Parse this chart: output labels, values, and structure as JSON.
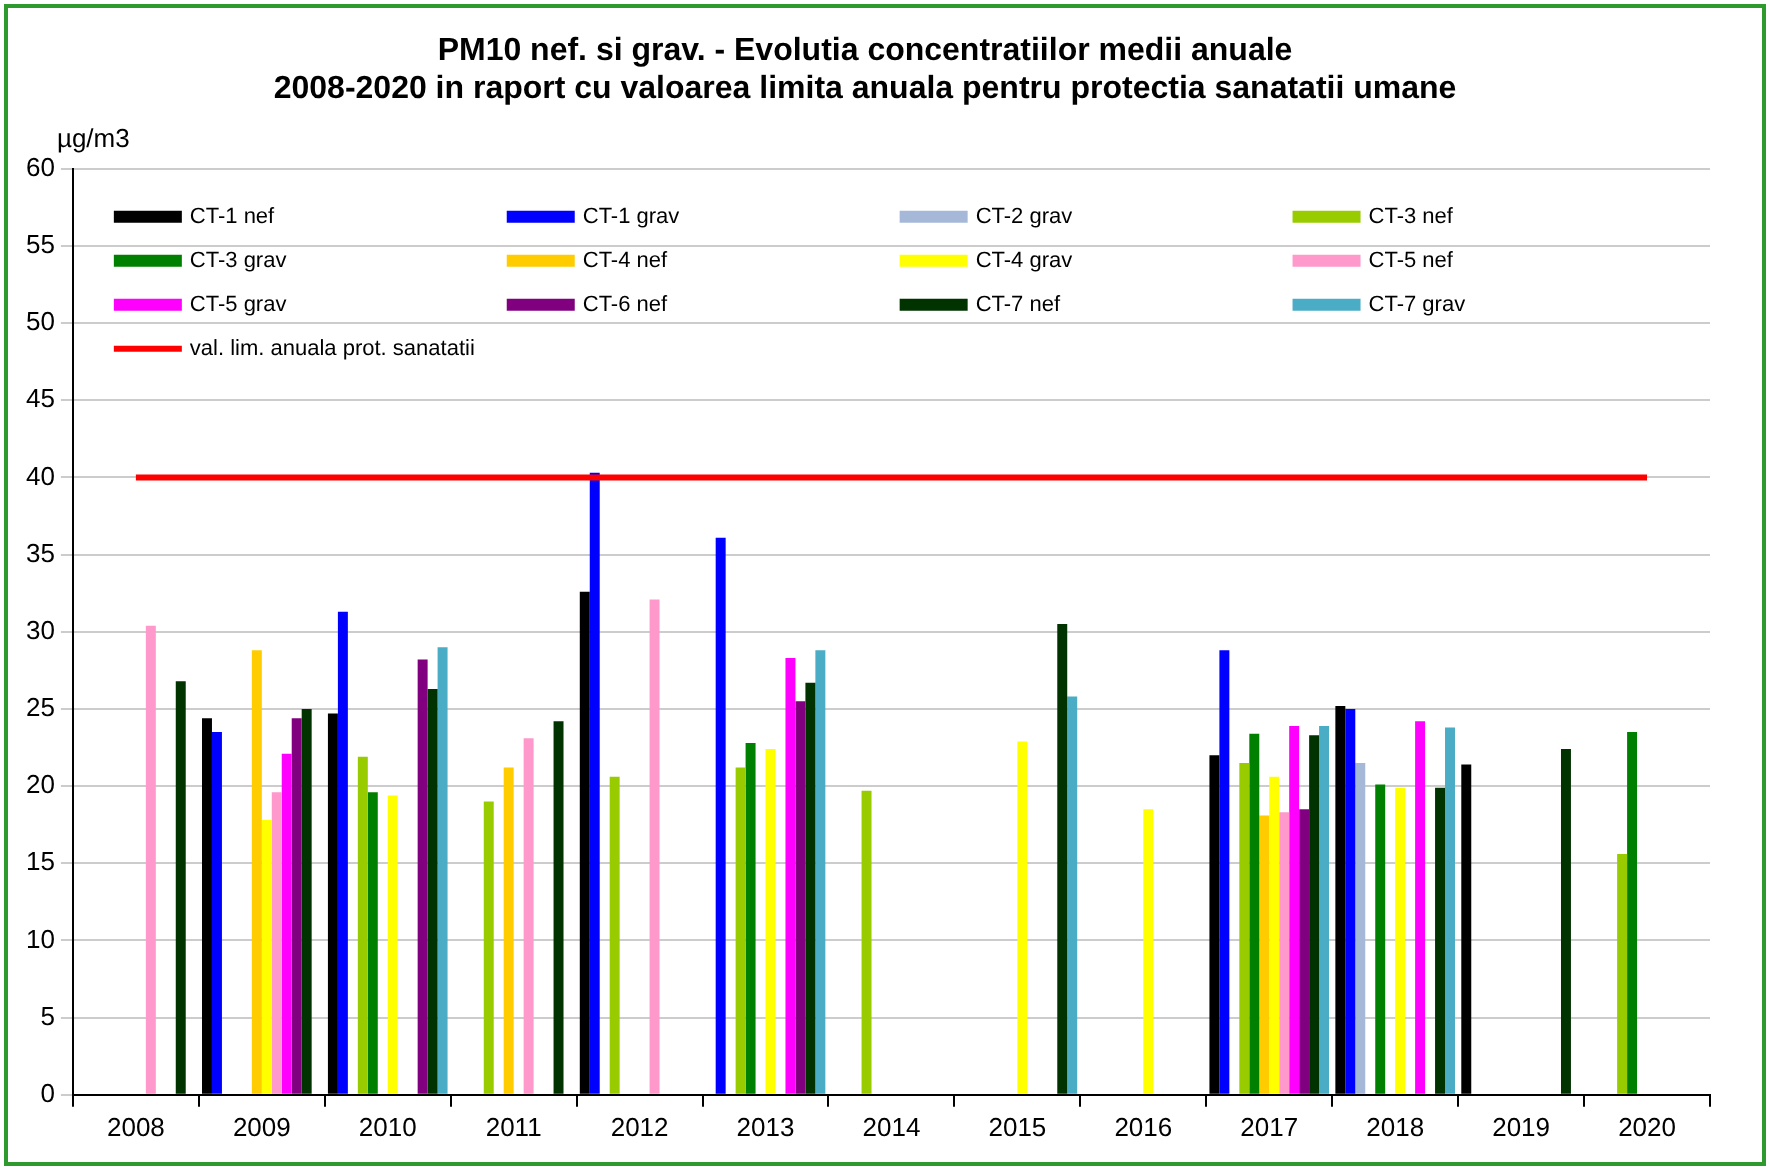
{
  "chart_data": {
    "type": "bar",
    "title": "PM10 nef. si grav. - Evolutia concentratiilor medii anuale\n2008-2020 in raport cu valoarea limita anuala pentru protectia sanatatii umane",
    "ylabel": "µg/m3",
    "categories": [
      "2008",
      "2009",
      "2010",
      "2011",
      "2012",
      "2013",
      "2014",
      "2015",
      "2016",
      "2017",
      "2018",
      "2019",
      "2020"
    ],
    "series": [
      {
        "name": "CT-1 nef",
        "color": "#000000",
        "values": [
          null,
          24.4,
          24.7,
          null,
          32.6,
          null,
          null,
          null,
          null,
          22.0,
          25.2,
          21.4,
          null
        ]
      },
      {
        "name": "CT-1 grav",
        "color": "#0000ff",
        "values": [
          null,
          23.5,
          31.3,
          null,
          40.3,
          36.1,
          null,
          null,
          null,
          28.8,
          25.0,
          null,
          null
        ]
      },
      {
        "name": "CT-2 grav",
        "color": "#a6b8d8",
        "values": [
          null,
          null,
          null,
          null,
          null,
          null,
          null,
          null,
          null,
          null,
          21.5,
          null,
          null
        ]
      },
      {
        "name": "CT-3 nef",
        "color": "#99cc00",
        "values": [
          null,
          null,
          21.9,
          19.0,
          20.6,
          21.2,
          19.7,
          null,
          null,
          21.5,
          null,
          null,
          15.6
        ]
      },
      {
        "name": "CT-3 grav",
        "color": "#008000",
        "values": [
          null,
          null,
          19.6,
          null,
          null,
          22.8,
          null,
          null,
          null,
          23.4,
          20.1,
          null,
          23.5
        ]
      },
      {
        "name": "CT-4 nef",
        "color": "#ffcc00",
        "values": [
          null,
          28.8,
          null,
          21.2,
          null,
          null,
          null,
          null,
          null,
          18.1,
          null,
          null,
          null
        ]
      },
      {
        "name": "CT-4 grav",
        "color": "#ffff00",
        "values": [
          null,
          17.8,
          19.4,
          null,
          null,
          22.4,
          null,
          22.9,
          18.5,
          20.6,
          19.9,
          null,
          null
        ]
      },
      {
        "name": "CT-5 nef",
        "color": "#ff99cc",
        "values": [
          30.4,
          19.6,
          null,
          23.1,
          32.1,
          null,
          null,
          null,
          null,
          18.3,
          null,
          null,
          null
        ]
      },
      {
        "name": "CT-5 grav",
        "color": "#ff00ff",
        "values": [
          null,
          22.1,
          null,
          null,
          null,
          28.3,
          null,
          null,
          null,
          23.9,
          24.2,
          null,
          null
        ]
      },
      {
        "name": "CT-6 nef",
        "color": "#800080",
        "values": [
          null,
          24.4,
          28.2,
          null,
          null,
          25.5,
          null,
          null,
          null,
          18.5,
          null,
          null,
          null
        ]
      },
      {
        "name": "CT-7 nef",
        "color": "#003300",
        "values": [
          26.8,
          25.0,
          26.3,
          24.2,
          null,
          26.7,
          null,
          30.5,
          null,
          23.3,
          19.9,
          22.4,
          null
        ]
      },
      {
        "name": "CT-7 grav",
        "color": "#4bacc6",
        "values": [
          null,
          null,
          29.0,
          null,
          null,
          28.8,
          null,
          25.8,
          null,
          23.9,
          23.8,
          null,
          null
        ]
      },
      {
        "name": "val. lim. anuala prot. sanatatii",
        "type": "line",
        "color": "#ff0000",
        "marker": "none",
        "values": [
          40,
          40,
          40,
          40,
          40,
          40,
          40,
          40,
          40,
          40,
          40,
          40,
          40
        ]
      }
    ],
    "ylim": [
      0,
      60
    ],
    "yticks": [
      0,
      5,
      10,
      15,
      20,
      25,
      30,
      35,
      40,
      45,
      50,
      55,
      60
    ],
    "grid": "y",
    "legend": "top left"
  }
}
